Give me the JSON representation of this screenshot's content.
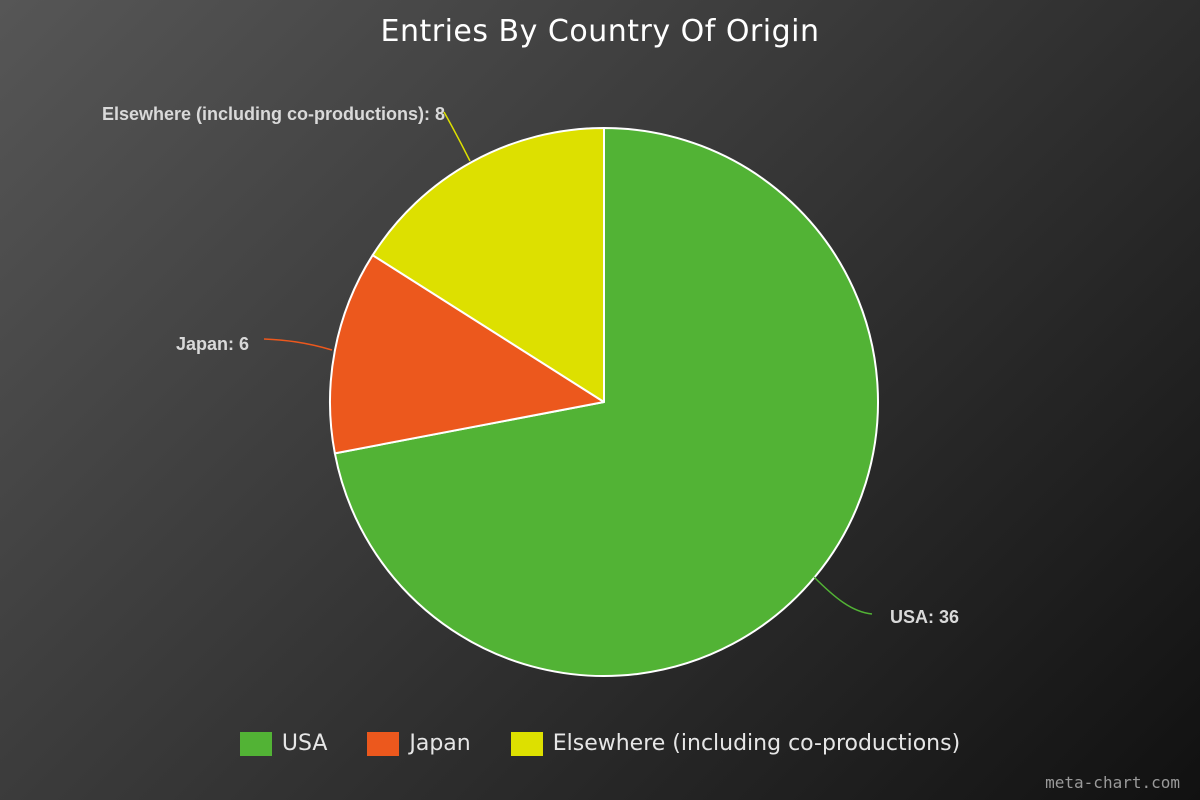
{
  "chart_data": {
    "type": "pie",
    "title": "Entries By Country Of Origin",
    "slices": [
      {
        "label": "USA",
        "value": 36,
        "color": "#52b335",
        "data_label": "USA: 36"
      },
      {
        "label": "Japan",
        "value": 6,
        "color": "#ec581d",
        "data_label": "Japan: 6"
      },
      {
        "label": "Elsewhere (including co-productions)",
        "value": 8,
        "color": "#dde000",
        "data_label": "Elsewhere (including co-productions): 8"
      }
    ],
    "legend_placement": "bottom-center"
  },
  "watermark": "meta-chart.com"
}
